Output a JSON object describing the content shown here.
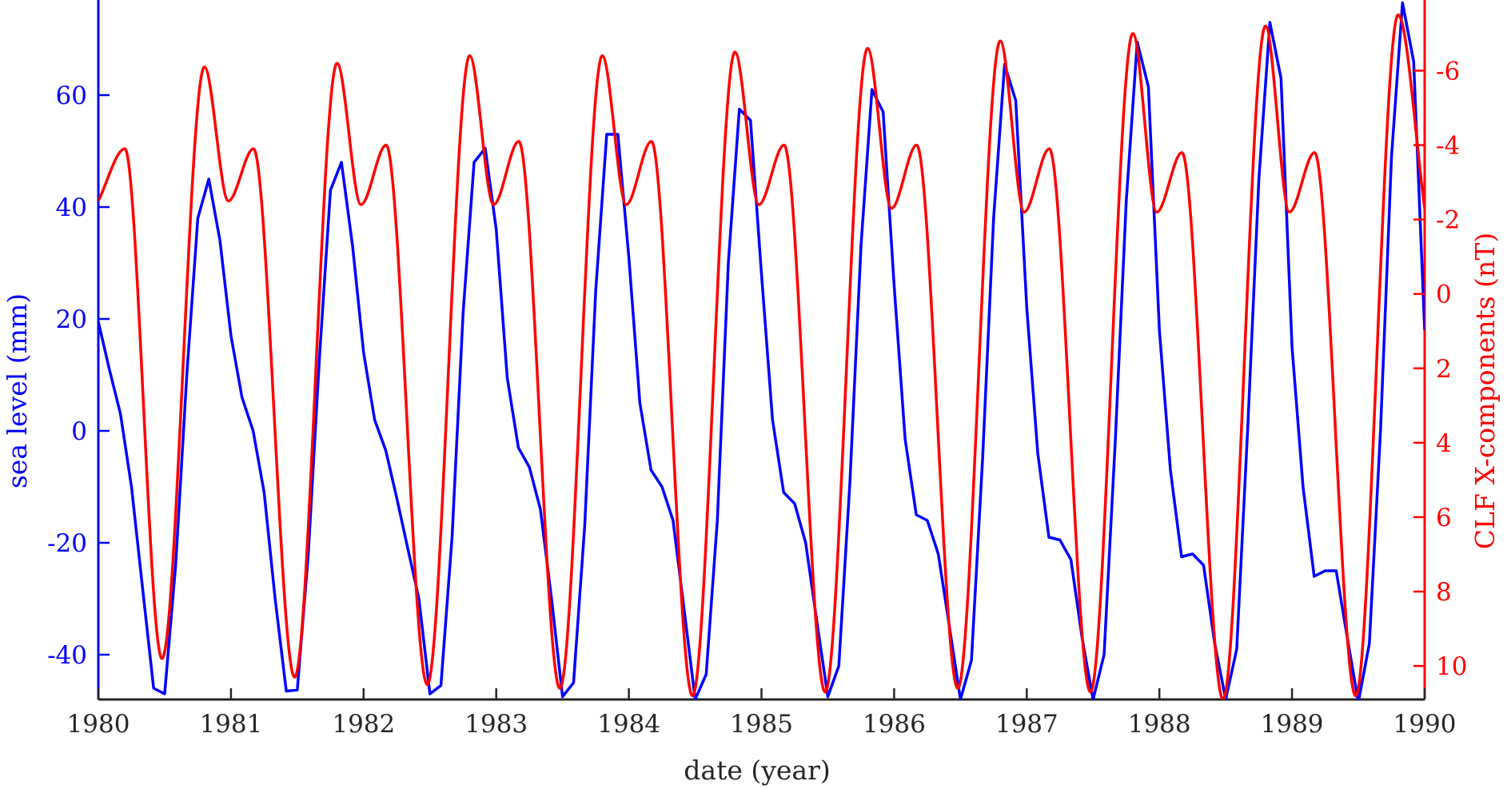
{
  "chart_data": {
    "type": "line",
    "title": "",
    "xlabel": "date (year)",
    "ylabel_left": "sea level (mm)",
    "ylabel_right": "CLF X-components (nT)",
    "xlim": [
      1980,
      1990
    ],
    "ylim_left": [
      -48,
      77
    ],
    "ylim_right": [
      10.9,
      -7.9
    ],
    "right_axis_reversed": true,
    "grid": false,
    "x_ticks": [
      1980,
      1981,
      1982,
      1983,
      1984,
      1985,
      1986,
      1987,
      1988,
      1989,
      1990
    ],
    "x_tick_labels": [
      "1980",
      "1981",
      "1982",
      "1983",
      "1984",
      "1985",
      "1986",
      "1987",
      "1988",
      "1989",
      "1990"
    ],
    "left_ticks": [
      -40,
      -20,
      0,
      20,
      40,
      60
    ],
    "left_tick_labels": [
      "-40",
      "-20",
      "0",
      "20",
      "40",
      "60"
    ],
    "right_ticks": [
      -6,
      -4,
      -2,
      0,
      2,
      4,
      6,
      8,
      10
    ],
    "right_tick_labels": [
      "-6",
      "-4",
      "-2",
      "0",
      "2",
      "4",
      "6",
      "8",
      "10"
    ],
    "series": [
      {
        "name": "sea level",
        "axis": "left",
        "color": "#0000ff",
        "x": [
          1980.0,
          1980.083,
          1980.167,
          1980.25,
          1980.333,
          1980.417,
          1980.5,
          1980.583,
          1980.667,
          1980.75,
          1980.833,
          1980.917,
          1981.0,
          1981.083,
          1981.167,
          1981.25,
          1981.333,
          1981.417,
          1981.5,
          1981.583,
          1981.667,
          1981.75,
          1981.833,
          1981.917,
          1982.0,
          1982.083,
          1982.167,
          1982.25,
          1982.333,
          1982.417,
          1982.5,
          1982.583,
          1982.667,
          1982.75,
          1982.833,
          1982.917,
          1983.0,
          1983.083,
          1983.167,
          1983.25,
          1983.333,
          1983.417,
          1983.5,
          1983.583,
          1983.667,
          1983.75,
          1983.833,
          1983.917,
          1984.0,
          1984.083,
          1984.167,
          1984.25,
          1984.333,
          1984.417,
          1984.5,
          1984.583,
          1984.667,
          1984.75,
          1984.833,
          1984.917,
          1985.0,
          1985.083,
          1985.167,
          1985.25,
          1985.333,
          1985.417,
          1985.5,
          1985.583,
          1985.667,
          1985.75,
          1985.833,
          1985.917,
          1986.0,
          1986.083,
          1986.167,
          1986.25,
          1986.333,
          1986.417,
          1986.5,
          1986.583,
          1986.667,
          1986.75,
          1986.833,
          1986.917,
          1987.0,
          1987.083,
          1987.167,
          1987.25,
          1987.333,
          1987.417,
          1987.5,
          1987.583,
          1987.667,
          1987.75,
          1987.833,
          1987.917,
          1988.0,
          1988.083,
          1988.167,
          1988.25,
          1988.333,
          1988.417,
          1988.5,
          1988.583,
          1988.667,
          1988.75,
          1988.833,
          1988.917,
          1989.0,
          1989.083,
          1989.167,
          1989.25,
          1989.333,
          1989.417,
          1989.5,
          1989.583,
          1989.667,
          1989.75,
          1989.833,
          1989.917,
          1990.0
        ],
        "y": [
          19.5,
          11.0,
          3.0,
          -10.0,
          -28.0,
          -46.0,
          -47.0,
          -24.0,
          10.0,
          38.0,
          45.0,
          34.0,
          17.0,
          6.0,
          0.0,
          -11.0,
          -30.0,
          -46.5,
          -46.3,
          -22.0,
          13.0,
          43.0,
          48.0,
          33.0,
          14.0,
          2.0,
          -3.5,
          -12.0,
          -21.0,
          -30.0,
          -47.0,
          -45.5,
          -19.0,
          21.0,
          48.0,
          50.5,
          36.0,
          9.5,
          -3.0,
          -6.5,
          -14.0,
          -30.0,
          -47.5,
          -45.0,
          -17.0,
          25.0,
          53.0,
          53.0,
          31.0,
          5.0,
          -7.0,
          -10.0,
          -16.0,
          -32.0,
          -48.0,
          -43.5,
          -16.0,
          30.0,
          57.5,
          55.5,
          28.0,
          2.0,
          -11.0,
          -13.0,
          -20.0,
          -34.0,
          -47.5,
          -42.0,
          -9.0,
          33.0,
          61.0,
          57.0,
          26.0,
          -1.5,
          -15.0,
          -16.0,
          -22.0,
          -35.0,
          -48.0,
          -41.0,
          -5.0,
          38.0,
          65.5,
          59.0,
          22.0,
          -4.0,
          -19.0,
          -19.5,
          -23.0,
          -37.0,
          -48.0,
          -40.0,
          -2.0,
          41.0,
          69.5,
          61.5,
          18.0,
          -7.0,
          -22.5,
          -22.0,
          -24.0,
          -38.0,
          -48.0,
          -39.0,
          1.0,
          45.0,
          73.0,
          63.0,
          15.0,
          -10.0,
          -26.0,
          -25.0,
          -25.0,
          -37.0,
          -48.5,
          -38.0,
          0.0,
          49.0,
          76.5,
          66.0,
          18.0
        ]
      },
      {
        "name": "CLF X-components",
        "axis": "right",
        "color": "#ff0000",
        "x": [
          1980.0,
          1980.2,
          1980.48,
          1980.8,
          1980.98,
          1981.17,
          1981.48,
          1981.8,
          1981.98,
          1982.17,
          1982.48,
          1982.8,
          1982.98,
          1983.17,
          1983.48,
          1983.8,
          1983.98,
          1984.17,
          1984.48,
          1984.8,
          1984.98,
          1985.17,
          1985.48,
          1985.8,
          1985.98,
          1986.17,
          1986.48,
          1986.8,
          1986.98,
          1987.17,
          1987.48,
          1987.8,
          1987.98,
          1988.17,
          1988.48,
          1988.8,
          1988.98,
          1989.17,
          1989.48,
          1989.8,
          1990.0
        ],
        "y": [
          -2.5,
          -3.9,
          9.8,
          -6.1,
          -2.5,
          -3.9,
          10.3,
          -6.2,
          -2.4,
          -4.0,
          10.5,
          -6.4,
          -2.4,
          -4.1,
          10.6,
          -6.4,
          -2.4,
          -4.1,
          10.8,
          -6.5,
          -2.4,
          -4.0,
          10.7,
          -6.6,
          -2.3,
          -4.0,
          10.6,
          -6.8,
          -2.2,
          -3.9,
          10.7,
          -7.0,
          -2.2,
          -3.8,
          10.9,
          -7.2,
          -2.2,
          -3.8,
          10.8,
          -7.5,
          -2.3
        ]
      }
    ]
  }
}
